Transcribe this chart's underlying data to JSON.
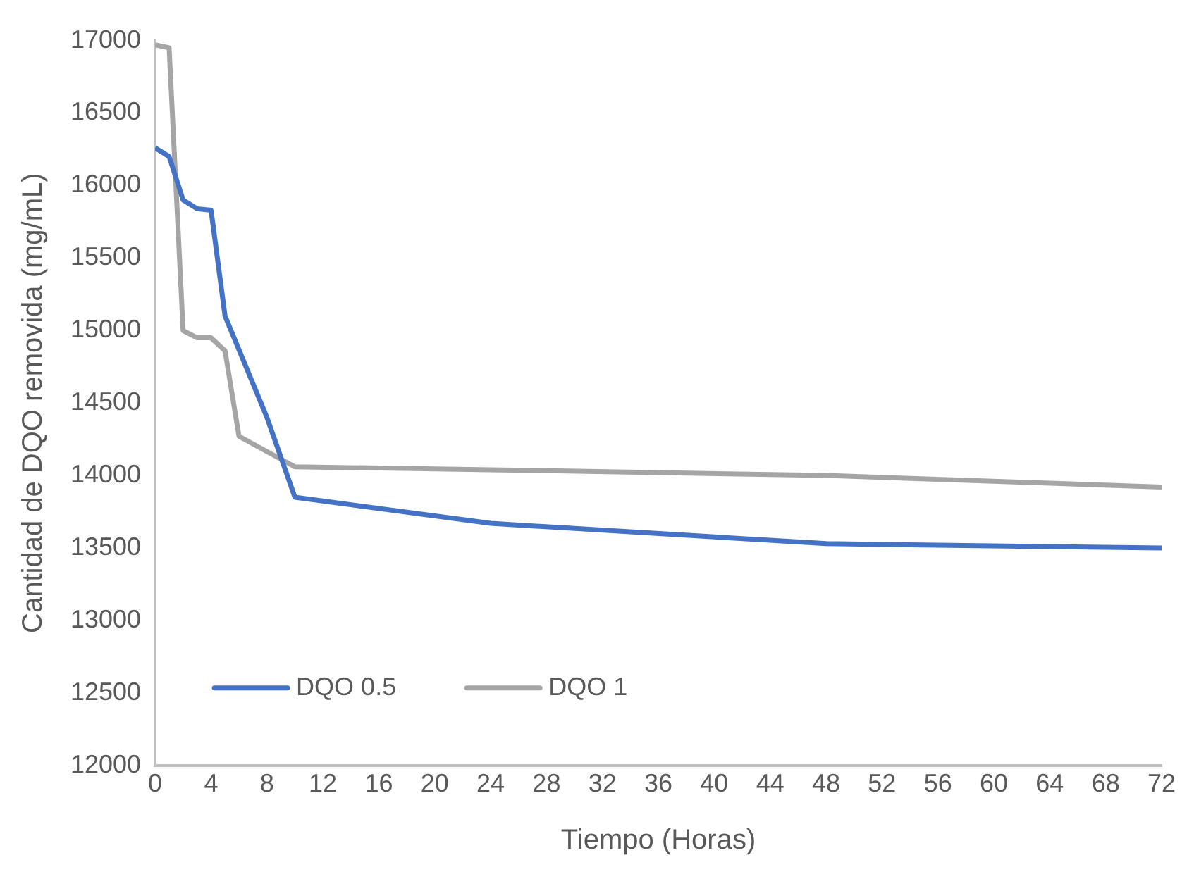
{
  "chart_data": {
    "type": "line",
    "xlabel": "Tiempo (Horas)",
    "ylabel": "Cantidad de DQO removida (mg/mL)",
    "xlim": [
      0,
      72
    ],
    "xticks": [
      0,
      4,
      8,
      12,
      16,
      20,
      24,
      28,
      32,
      36,
      40,
      44,
      48,
      52,
      56,
      60,
      64,
      68,
      72
    ],
    "ylim": [
      12000,
      17000
    ],
    "yticks": [
      12000,
      12500,
      13000,
      13500,
      14000,
      14500,
      15000,
      15500,
      16000,
      16500,
      17000
    ],
    "grid": false,
    "legend": "bottom left",
    "marker": "none",
    "line_style": "solid",
    "series": [
      {
        "name": "DQO 0.5",
        "color": "#4472c4",
        "x": [
          0,
          1,
          2,
          3,
          4,
          5,
          8,
          10,
          24,
          48,
          72
        ],
        "values": [
          16260,
          16200,
          15900,
          15840,
          15830,
          15100,
          14400,
          13850,
          13670,
          13530,
          13500
        ]
      },
      {
        "name": "DQO 1",
        "color": "#a5a5a5",
        "x": [
          0,
          1,
          2,
          3,
          4,
          5,
          6,
          10,
          24,
          48,
          72
        ],
        "values": [
          16970,
          16950,
          15000,
          14950,
          14950,
          14860,
          14270,
          14060,
          14040,
          14000,
          13920
        ]
      }
    ]
  }
}
